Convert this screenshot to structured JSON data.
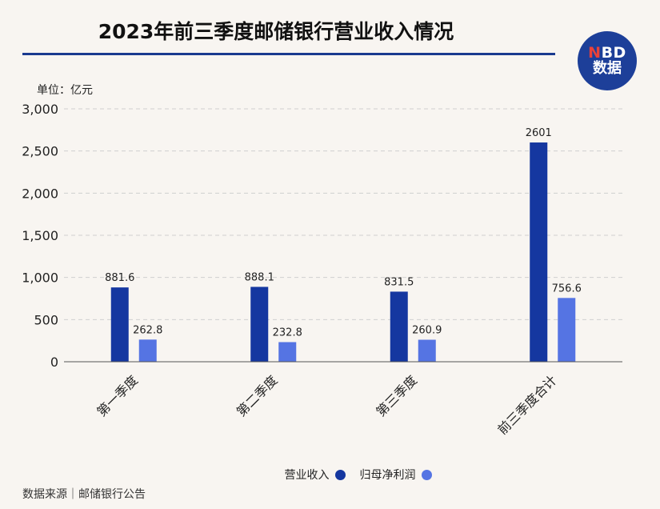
{
  "header": {
    "title": "2023年前三季度邮储银行营业收入情况"
  },
  "logo": {
    "line1_n": "N",
    "line1_rest": "BD",
    "line2": "数据"
  },
  "unit_label": "单位：亿元",
  "source_label": "数据来源｜邮储银行公告",
  "colors": {
    "revenue": "#1537a0",
    "profit": "#5574e3",
    "grid": "#cfcfcf",
    "axis": "#555555"
  },
  "chart_data": {
    "type": "bar",
    "categories": [
      "第一季度",
      "第二季度",
      "第三季度",
      "前三季度合计"
    ],
    "series": [
      {
        "name": "营业收入",
        "values": [
          881.6,
          888.1,
          831.5,
          2601
        ],
        "labels": [
          "881.6",
          "888.1",
          "831.5",
          "2601"
        ]
      },
      {
        "name": "归母净利润",
        "values": [
          262.8,
          232.8,
          260.9,
          756.6
        ],
        "labels": [
          "262.8",
          "232.8",
          "260.9",
          "756.6"
        ]
      }
    ],
    "ylim": [
      0,
      3000
    ],
    "yticks": [
      0,
      500,
      1000,
      1500,
      2000,
      2500,
      3000
    ],
    "ytick_labels": [
      "0",
      "500",
      "1,000",
      "1,500",
      "2,000",
      "2,500",
      "3,000"
    ],
    "grid": true,
    "legend": "bottom"
  }
}
